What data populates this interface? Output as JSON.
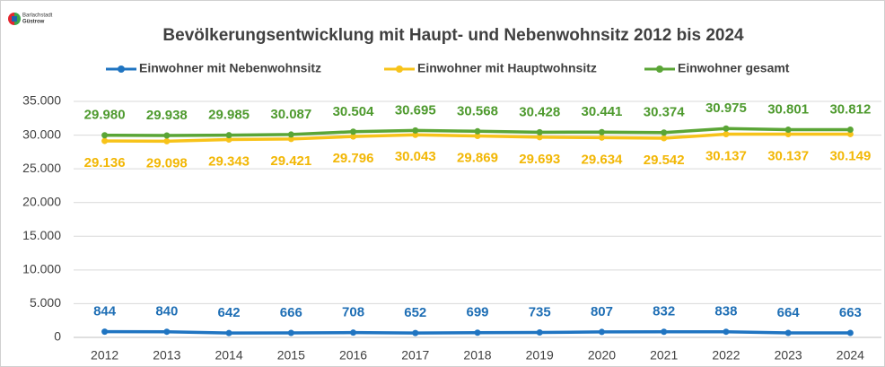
{
  "chart_data": {
    "type": "line",
    "logo_text": [
      "Barlachstadt",
      "Güstrow"
    ],
    "title": "Bevölkerungsentwicklung mit Haupt- und Nebenwohnsitz 2012 bis 2024",
    "categories": [
      "2012",
      "2013",
      "2014",
      "2015",
      "2016",
      "2017",
      "2018",
      "2019",
      "2020",
      "2021",
      "2022",
      "2023",
      "2024"
    ],
    "series": [
      {
        "name": "Einwohner mit Nebenwohnsitz",
        "color": "#1f74c1",
        "label_color": "#1f6fb5",
        "values": [
          844,
          840,
          642,
          666,
          708,
          652,
          699,
          735,
          807,
          832,
          838,
          664,
          663
        ]
      },
      {
        "name": "Einwohner mit Hauptwohnsitz",
        "color": "#f7c31a",
        "label_color": "#f2b705",
        "values": [
          29136,
          29098,
          29343,
          29421,
          29796,
          30043,
          29869,
          29693,
          29634,
          29542,
          30137,
          30137,
          30149
        ],
        "value_labels": [
          "29.136",
          "29.098",
          "29.343",
          "29.421",
          "29.796",
          "30.043",
          "29.869",
          "29.693",
          "29.634",
          "29.542",
          "30.137",
          "30.137",
          "30.149"
        ]
      },
      {
        "name": "Einwohner gesamt",
        "color": "#5aa536",
        "label_color": "#4e9a2e",
        "values": [
          29980,
          29938,
          29985,
          30087,
          30504,
          30695,
          30568,
          30428,
          30441,
          30374,
          30975,
          30801,
          30812
        ],
        "value_labels": [
          "29.980",
          "29.938",
          "29.985",
          "30.087",
          "30.504",
          "30.695",
          "30.568",
          "30.428",
          "30.441",
          "30.374",
          "30.975",
          "30.801",
          "30.812"
        ]
      }
    ],
    "ylim": [
      0,
      35000
    ],
    "yticks": [
      0,
      {
        "value": 5000,
        "label": "5.000"
      },
      {
        "value": 10000,
        "label": "10.000"
      },
      {
        "value": 15000,
        "label": "15.000"
      },
      {
        "value": 20000,
        "label": "20.000"
      },
      {
        "value": 25000,
        "label": "25.000"
      },
      {
        "value": 30000,
        "label": "30.000"
      },
      {
        "value": 35000,
        "label": "35.000"
      }
    ],
    "grid": true,
    "legend": "top"
  }
}
